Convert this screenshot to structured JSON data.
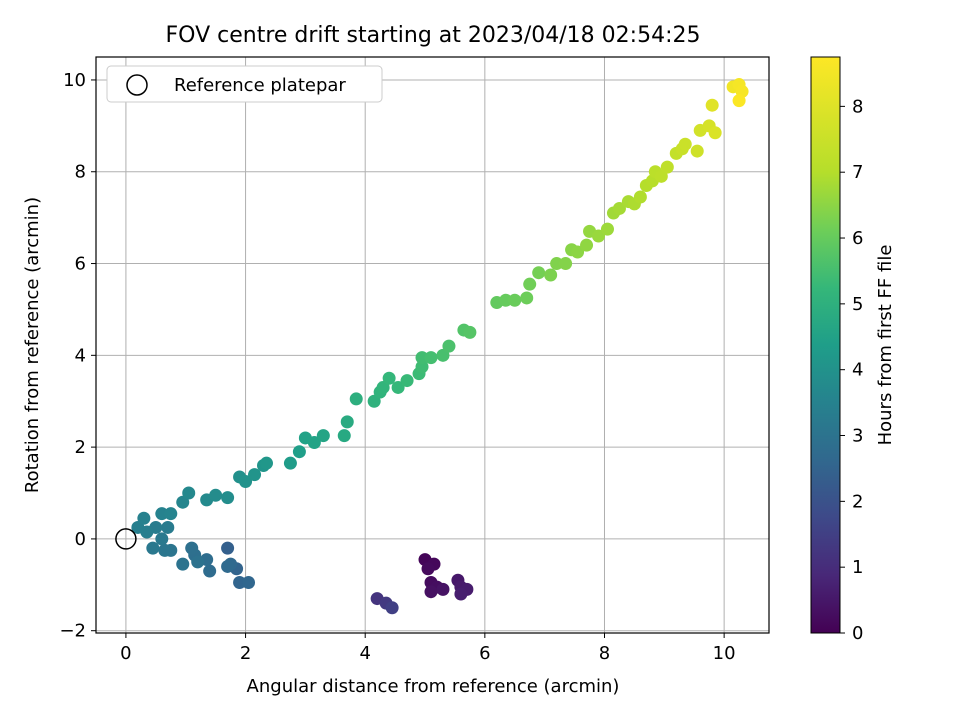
{
  "chart_data": {
    "type": "scatter",
    "title": "FOV centre drift starting at 2023/04/18 02:54:25",
    "xlabel": "Angular distance from reference (arcmin)",
    "ylabel": "Rotation from reference (arcmin)",
    "xlim": [
      -0.5,
      10.75
    ],
    "ylim": [
      -2.05,
      10.5
    ],
    "xticks": [
      0,
      2,
      4,
      6,
      8,
      10
    ],
    "yticks": [
      -2,
      0,
      2,
      4,
      6,
      8,
      10
    ],
    "grid": true,
    "legend": {
      "placement": "top-left",
      "entries": [
        "Reference platepar"
      ]
    },
    "reference_point": {
      "x": 0,
      "y": 0,
      "label": "Reference platepar"
    },
    "colorbar": {
      "label": "Hours from first FF file",
      "colormap": "viridis",
      "range": [
        0,
        8.75
      ],
      "ticks": [
        0,
        1,
        2,
        3,
        4,
        5,
        6,
        7,
        8
      ]
    },
    "points": [
      {
        "x": 5.0,
        "y": -0.45,
        "h": 0.1
      },
      {
        "x": 5.15,
        "y": -0.55,
        "h": 0.15
      },
      {
        "x": 5.05,
        "y": -0.65,
        "h": 0.2
      },
      {
        "x": 5.1,
        "y": -0.95,
        "h": 0.25
      },
      {
        "x": 5.2,
        "y": -1.05,
        "h": 0.3
      },
      {
        "x": 5.1,
        "y": -1.15,
        "h": 0.35
      },
      {
        "x": 5.3,
        "y": -1.1,
        "h": 0.4
      },
      {
        "x": 5.55,
        "y": -0.9,
        "h": 0.5
      },
      {
        "x": 5.6,
        "y": -1.05,
        "h": 0.55
      },
      {
        "x": 5.7,
        "y": -1.1,
        "h": 0.6
      },
      {
        "x": 5.6,
        "y": -1.2,
        "h": 0.65
      },
      {
        "x": 4.2,
        "y": -1.3,
        "h": 1.2
      },
      {
        "x": 4.35,
        "y": -1.4,
        "h": 1.35
      },
      {
        "x": 4.45,
        "y": -1.5,
        "h": 1.5
      },
      {
        "x": 1.7,
        "y": -0.2,
        "h": 2.4
      },
      {
        "x": 1.85,
        "y": -0.65,
        "h": 2.5
      },
      {
        "x": 1.9,
        "y": -0.95,
        "h": 2.55
      },
      {
        "x": 2.05,
        "y": -0.95,
        "h": 2.6
      },
      {
        "x": 1.75,
        "y": -0.55,
        "h": 2.65
      },
      {
        "x": 1.7,
        "y": -0.6,
        "h": 2.7
      },
      {
        "x": 1.4,
        "y": -0.7,
        "h": 2.75
      },
      {
        "x": 1.35,
        "y": -0.45,
        "h": 2.8
      },
      {
        "x": 1.15,
        "y": -0.35,
        "h": 2.85
      },
      {
        "x": 1.1,
        "y": -0.2,
        "h": 2.9
      },
      {
        "x": 1.2,
        "y": -0.5,
        "h": 2.95
      },
      {
        "x": 0.95,
        "y": -0.55,
        "h": 3.0
      },
      {
        "x": 0.75,
        "y": -0.25,
        "h": 3.05
      },
      {
        "x": 0.65,
        "y": -0.25,
        "h": 3.1
      },
      {
        "x": 0.45,
        "y": -0.2,
        "h": 3.15
      },
      {
        "x": 0.6,
        "y": 0.0,
        "h": 3.2
      },
      {
        "x": 0.7,
        "y": 0.25,
        "h": 3.25
      },
      {
        "x": 0.5,
        "y": 0.25,
        "h": 3.3
      },
      {
        "x": 0.35,
        "y": 0.15,
        "h": 3.35
      },
      {
        "x": 0.2,
        "y": 0.25,
        "h": 3.4
      },
      {
        "x": 0.3,
        "y": 0.45,
        "h": 3.45
      },
      {
        "x": 0.6,
        "y": 0.55,
        "h": 3.5
      },
      {
        "x": 0.75,
        "y": 0.55,
        "h": 3.55
      },
      {
        "x": 0.95,
        "y": 0.8,
        "h": 3.6
      },
      {
        "x": 1.05,
        "y": 1.0,
        "h": 3.7
      },
      {
        "x": 1.35,
        "y": 0.85,
        "h": 3.75
      },
      {
        "x": 1.5,
        "y": 0.95,
        "h": 3.8
      },
      {
        "x": 1.7,
        "y": 0.9,
        "h": 3.85
      },
      {
        "x": 1.9,
        "y": 1.35,
        "h": 3.95
      },
      {
        "x": 2.0,
        "y": 1.25,
        "h": 4.0
      },
      {
        "x": 2.15,
        "y": 1.4,
        "h": 4.05
      },
      {
        "x": 2.3,
        "y": 1.6,
        "h": 4.1
      },
      {
        "x": 2.35,
        "y": 1.65,
        "h": 4.15
      },
      {
        "x": 2.75,
        "y": 1.65,
        "h": 4.3
      },
      {
        "x": 2.9,
        "y": 1.9,
        "h": 4.4
      },
      {
        "x": 3.0,
        "y": 2.2,
        "h": 4.5
      },
      {
        "x": 3.15,
        "y": 2.1,
        "h": 4.55
      },
      {
        "x": 3.3,
        "y": 2.25,
        "h": 4.6
      },
      {
        "x": 3.65,
        "y": 2.25,
        "h": 4.75
      },
      {
        "x": 3.7,
        "y": 2.55,
        "h": 4.8
      },
      {
        "x": 3.85,
        "y": 3.05,
        "h": 4.95
      },
      {
        "x": 4.15,
        "y": 3.0,
        "h": 5.05
      },
      {
        "x": 4.25,
        "y": 3.2,
        "h": 5.1
      },
      {
        "x": 4.3,
        "y": 3.3,
        "h": 5.15
      },
      {
        "x": 4.4,
        "y": 3.5,
        "h": 5.2
      },
      {
        "x": 4.55,
        "y": 3.3,
        "h": 5.25
      },
      {
        "x": 4.7,
        "y": 3.45,
        "h": 5.3
      },
      {
        "x": 4.9,
        "y": 3.6,
        "h": 5.35
      },
      {
        "x": 4.95,
        "y": 3.75,
        "h": 5.4
      },
      {
        "x": 4.95,
        "y": 3.95,
        "h": 5.45
      },
      {
        "x": 5.1,
        "y": 3.95,
        "h": 5.5
      },
      {
        "x": 5.3,
        "y": 4.0,
        "h": 5.55
      },
      {
        "x": 5.4,
        "y": 4.2,
        "h": 5.6
      },
      {
        "x": 5.65,
        "y": 4.55,
        "h": 5.7
      },
      {
        "x": 5.75,
        "y": 4.5,
        "h": 5.75
      },
      {
        "x": 6.2,
        "y": 5.15,
        "h": 5.95
      },
      {
        "x": 6.35,
        "y": 5.2,
        "h": 6.0
      },
      {
        "x": 6.5,
        "y": 5.2,
        "h": 6.05
      },
      {
        "x": 6.7,
        "y": 5.25,
        "h": 6.1
      },
      {
        "x": 6.75,
        "y": 5.55,
        "h": 6.15
      },
      {
        "x": 6.9,
        "y": 5.8,
        "h": 6.2
      },
      {
        "x": 7.1,
        "y": 5.75,
        "h": 6.3
      },
      {
        "x": 7.2,
        "y": 6.0,
        "h": 6.35
      },
      {
        "x": 7.35,
        "y": 6.0,
        "h": 6.4
      },
      {
        "x": 7.45,
        "y": 6.3,
        "h": 6.45
      },
      {
        "x": 7.55,
        "y": 6.25,
        "h": 6.5
      },
      {
        "x": 7.7,
        "y": 6.4,
        "h": 6.55
      },
      {
        "x": 7.75,
        "y": 6.7,
        "h": 6.6
      },
      {
        "x": 7.9,
        "y": 6.6,
        "h": 6.65
      },
      {
        "x": 8.05,
        "y": 6.75,
        "h": 6.7
      },
      {
        "x": 8.15,
        "y": 7.1,
        "h": 6.75
      },
      {
        "x": 8.25,
        "y": 7.2,
        "h": 6.8
      },
      {
        "x": 8.4,
        "y": 7.35,
        "h": 6.85
      },
      {
        "x": 8.5,
        "y": 7.3,
        "h": 6.9
      },
      {
        "x": 8.6,
        "y": 7.45,
        "h": 6.95
      },
      {
        "x": 8.7,
        "y": 7.7,
        "h": 7.0
      },
      {
        "x": 8.8,
        "y": 7.8,
        "h": 7.05
      },
      {
        "x": 8.85,
        "y": 8.0,
        "h": 7.15
      },
      {
        "x": 8.95,
        "y": 7.9,
        "h": 7.2
      },
      {
        "x": 9.05,
        "y": 8.1,
        "h": 7.25
      },
      {
        "x": 9.2,
        "y": 8.4,
        "h": 7.35
      },
      {
        "x": 9.3,
        "y": 8.5,
        "h": 7.45
      },
      {
        "x": 9.35,
        "y": 8.6,
        "h": 7.5
      },
      {
        "x": 9.55,
        "y": 8.45,
        "h": 7.6
      },
      {
        "x": 9.6,
        "y": 8.9,
        "h": 7.7
      },
      {
        "x": 9.75,
        "y": 9.0,
        "h": 7.8
      },
      {
        "x": 9.85,
        "y": 8.85,
        "h": 7.9
      },
      {
        "x": 9.8,
        "y": 9.45,
        "h": 8.05
      },
      {
        "x": 10.15,
        "y": 9.85,
        "h": 8.45
      },
      {
        "x": 10.25,
        "y": 9.9,
        "h": 8.55
      },
      {
        "x": 10.3,
        "y": 9.75,
        "h": 8.6
      },
      {
        "x": 10.25,
        "y": 9.55,
        "h": 8.7
      }
    ]
  }
}
